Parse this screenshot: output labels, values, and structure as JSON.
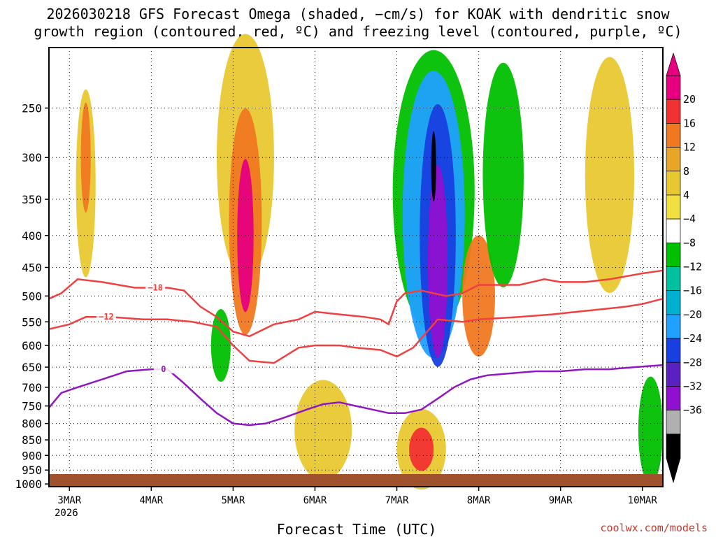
{
  "chart_data": {
    "type": "heatmap",
    "title_line1": "2026030218 GFS Forecast Omega (shaded, −cm/s) for KOAK with dendritic snow",
    "title_line2": "growth region (contoured, red, ºC) and freezing level (contoured, purple, ºC)",
    "xlabel": "Forecast Time (UTC)",
    "x_ticks": [
      "3MAR",
      "4MAR",
      "5MAR",
      "6MAR",
      "7MAR",
      "8MAR",
      "9MAR",
      "10MAR"
    ],
    "x_subtitle": "2026",
    "x_range_days": [
      2.75,
      10.25
    ],
    "y_ticks": [
      250,
      300,
      350,
      400,
      450,
      500,
      550,
      600,
      650,
      700,
      750,
      800,
      850,
      900,
      950,
      1000
    ],
    "y_range_hpa": [
      200,
      1010
    ],
    "colorbar": {
      "labels": [
        "20",
        "16",
        "12",
        "8",
        "4",
        "−4",
        "−8",
        "−12",
        "−16",
        "−20",
        "−24",
        "−28",
        "−32",
        "−36"
      ],
      "colors": [
        "#e60080",
        "#f23232",
        "#f07820",
        "#e8a628",
        "#e8c830",
        "#f0e040",
        "#ffffff",
        "#00c000",
        "#00c0a0",
        "#00b0d0",
        "#20a0ff",
        "#1840e0",
        "#5a20c0",
        "#9010d0",
        "#b0b0b0",
        "#000000"
      ]
    },
    "contours": [
      {
        "name": "-18C",
        "color": "#f04040",
        "label": "−18",
        "x": [
          2.75,
          2.9,
          3.1,
          3.4,
          3.8,
          4.2,
          4.4,
          4.6,
          4.8,
          5.0,
          5.2,
          5.5,
          5.8,
          6.0,
          6.3,
          6.6,
          6.8,
          6.9,
          7.0,
          7.1,
          7.3,
          7.6,
          7.8,
          8.0,
          8.5,
          8.8,
          9.0,
          9.3,
          9.6,
          9.8,
          10.0,
          10.25
        ],
        "y": [
          505,
          495,
          470,
          475,
          485,
          485,
          490,
          520,
          540,
          570,
          580,
          555,
          545,
          530,
          535,
          540,
          545,
          555,
          510,
          495,
          490,
          500,
          495,
          480,
          480,
          470,
          475,
          475,
          470,
          465,
          460,
          455
        ],
        "label_x": 4.05,
        "label_y": 485
      },
      {
        "name": "-12C",
        "color": "#f04040",
        "label": "−12",
        "x": [
          2.75,
          3.0,
          3.2,
          3.5,
          3.9,
          4.2,
          4.5,
          4.8,
          5.0,
          5.2,
          5.5,
          5.8,
          6.0,
          6.3,
          6.5,
          6.8,
          7.0,
          7.2,
          7.5,
          7.8,
          8.0,
          8.5,
          8.9,
          9.2,
          9.5,
          9.8,
          10.0,
          10.25
        ],
        "y": [
          565,
          555,
          540,
          540,
          545,
          545,
          550,
          560,
          600,
          635,
          640,
          605,
          600,
          600,
          605,
          610,
          625,
          605,
          545,
          550,
          545,
          540,
          535,
          530,
          525,
          520,
          515,
          505
        ],
        "label_x": 3.45,
        "label_y": 540
      },
      {
        "name": "0C",
        "color": "#9018c0",
        "label": "0",
        "x": [
          2.75,
          2.9,
          3.1,
          3.4,
          3.7,
          4.0,
          4.2,
          4.4,
          4.6,
          4.8,
          5.0,
          5.2,
          5.4,
          5.6,
          5.9,
          6.1,
          6.3,
          6.5,
          6.7,
          6.9,
          7.1,
          7.3,
          7.5,
          7.7,
          7.9,
          8.1,
          8.4,
          8.7,
          9.0,
          9.3,
          9.6,
          9.9,
          10.25
        ],
        "y": [
          755,
          715,
          700,
          680,
          660,
          655,
          655,
          690,
          730,
          770,
          800,
          805,
          800,
          785,
          760,
          745,
          740,
          750,
          760,
          770,
          770,
          760,
          730,
          700,
          680,
          670,
          665,
          660,
          660,
          655,
          655,
          650,
          645
        ],
        "label_x": 4.15,
        "label_y": 655
      }
    ],
    "omega_blobs": [
      {
        "x": 5.15,
        "y": 300,
        "rx": 0.35,
        "ry": 200,
        "color": "#e8c830"
      },
      {
        "x": 5.15,
        "y": 380,
        "rx": 0.2,
        "ry": 150,
        "color": "#f07820"
      },
      {
        "x": 5.15,
        "y": 400,
        "rx": 0.1,
        "ry": 110,
        "color": "#e60080"
      },
      {
        "x": 3.2,
        "y": 330,
        "rx": 0.12,
        "ry": 110,
        "color": "#e8c830"
      },
      {
        "x": 3.2,
        "y": 300,
        "rx": 0.06,
        "ry": 60,
        "color": "#f07820"
      },
      {
        "x": 7.45,
        "y": 340,
        "rx": 0.5,
        "ry": 230,
        "color": "#00c000"
      },
      {
        "x": 7.45,
        "y": 370,
        "rx": 0.38,
        "ry": 210,
        "color": "#20a0ff"
      },
      {
        "x": 7.5,
        "y": 400,
        "rx": 0.22,
        "ry": 180,
        "color": "#1840e0"
      },
      {
        "x": 7.5,
        "y": 440,
        "rx": 0.12,
        "ry": 150,
        "color": "#9010d0"
      },
      {
        "x": 7.45,
        "y": 310,
        "rx": 0.03,
        "ry": 40,
        "color": "#000000"
      },
      {
        "x": 7.3,
        "y": 880,
        "rx": 0.3,
        "ry": 130,
        "color": "#e8c830"
      },
      {
        "x": 7.3,
        "y": 880,
        "rx": 0.15,
        "ry": 70,
        "color": "#f23232"
      },
      {
        "x": 8.0,
        "y": 500,
        "rx": 0.2,
        "ry": 110,
        "color": "#f07820"
      },
      {
        "x": 4.85,
        "y": 600,
        "rx": 0.12,
        "ry": 80,
        "color": "#00c000"
      },
      {
        "x": 6.1,
        "y": 820,
        "rx": 0.35,
        "ry": 150,
        "color": "#e8c830"
      },
      {
        "x": 8.3,
        "y": 320,
        "rx": 0.25,
        "ry": 140,
        "color": "#00c000"
      },
      {
        "x": 10.1,
        "y": 820,
        "rx": 0.15,
        "ry": 160,
        "color": "#00c000"
      },
      {
        "x": 9.6,
        "y": 320,
        "rx": 0.3,
        "ry": 160,
        "color": "#e8c830"
      }
    ]
  },
  "footer": {
    "credit": "coolwx.com/models"
  }
}
